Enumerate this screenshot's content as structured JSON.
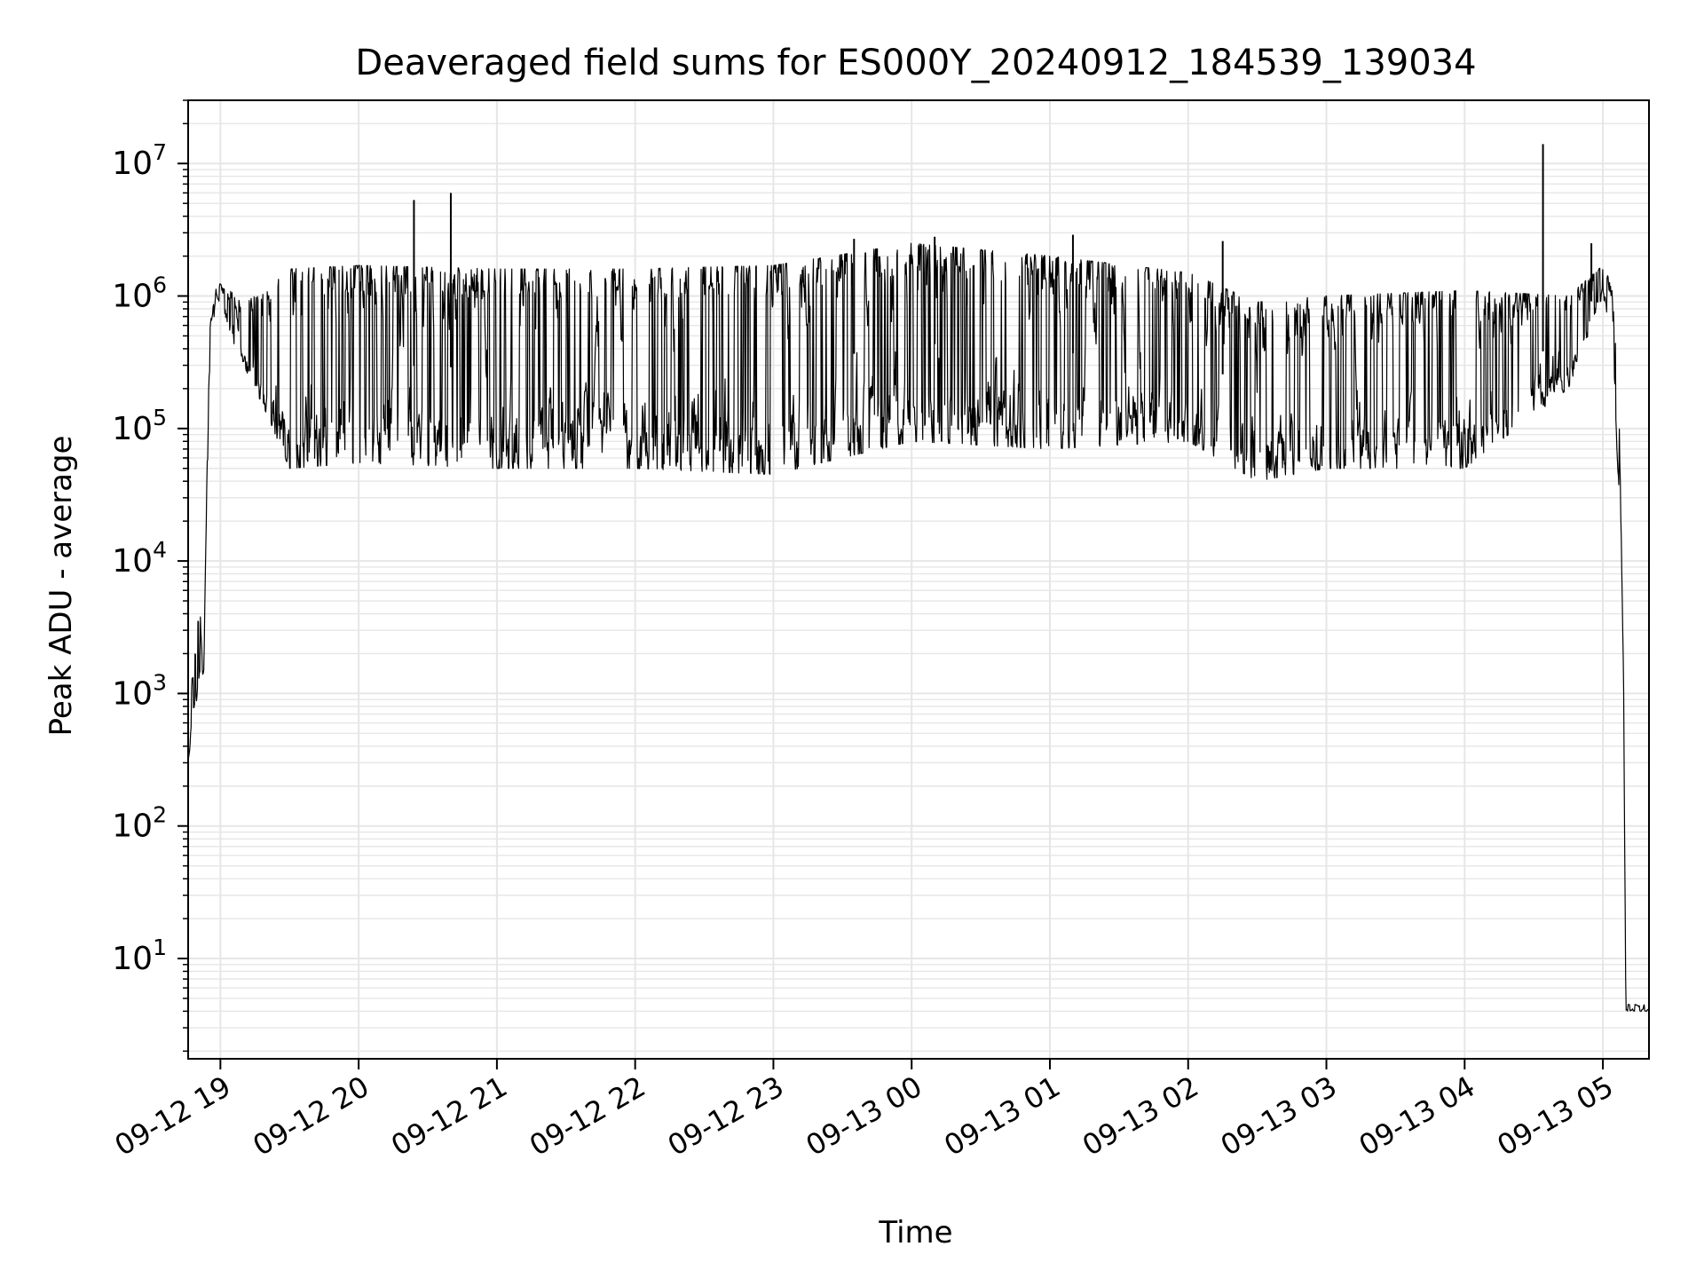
{
  "chart_data": {
    "type": "line",
    "title": "Deaveraged field sums for ES000Y_20240912_184539_139034",
    "xlabel": "Time",
    "ylabel": "Peak ADU - average",
    "x_scale": "time",
    "y_scale": "log",
    "xlim": [
      "2024-09-12 18:46:00",
      "2024-09-13 05:20:00"
    ],
    "ylim": [
      1.75,
      30000000
    ],
    "grid": true,
    "legend": "none",
    "x_ticks": [
      {
        "t": "2024-09-12 19:00",
        "label": "09-12 19"
      },
      {
        "t": "2024-09-12 20:00",
        "label": "09-12 20"
      },
      {
        "t": "2024-09-12 21:00",
        "label": "09-12 21"
      },
      {
        "t": "2024-09-12 22:00",
        "label": "09-12 22"
      },
      {
        "t": "2024-09-12 23:00",
        "label": "09-12 23"
      },
      {
        "t": "2024-09-13 00:00",
        "label": "09-13 00"
      },
      {
        "t": "2024-09-13 01:00",
        "label": "09-13 01"
      },
      {
        "t": "2024-09-13 02:00",
        "label": "09-13 02"
      },
      {
        "t": "2024-09-13 03:00",
        "label": "09-13 03"
      },
      {
        "t": "2024-09-13 04:00",
        "label": "09-13 04"
      },
      {
        "t": "2024-09-13 05:00",
        "label": "09-13 05"
      }
    ],
    "y_ticks": [
      {
        "value": 10,
        "base": "10",
        "exp": "1"
      },
      {
        "value": 100,
        "base": "10",
        "exp": "2"
      },
      {
        "value": 1000,
        "base": "10",
        "exp": "3"
      },
      {
        "value": 10000,
        "base": "10",
        "exp": "4"
      },
      {
        "value": 100000,
        "base": "10",
        "exp": "5"
      },
      {
        "value": 1000000,
        "base": "10",
        "exp": "6"
      },
      {
        "value": 10000000,
        "base": "10",
        "exp": "7"
      }
    ],
    "series": [
      {
        "color": "#000000",
        "envelope": [
          {
            "t": "2024-09-12 18:46",
            "low": 300,
            "high": 600
          },
          {
            "t": "2024-09-12 18:48",
            "low": 600,
            "high": 1500
          },
          {
            "t": "2024-09-12 18:51",
            "low": 1200,
            "high": 4700
          },
          {
            "t": "2024-09-12 18:53",
            "low": 1500,
            "high": 2500
          },
          {
            "t": "2024-09-12 18:55",
            "low": 200000,
            "high": 500000
          },
          {
            "t": "2024-09-12 18:58",
            "low": 1000000,
            "high": 1300000
          },
          {
            "t": "2024-09-12 19:04",
            "low": 500000,
            "high": 1100000
          },
          {
            "t": "2024-09-12 19:10",
            "low": 300000,
            "high": 900000
          },
          {
            "t": "2024-09-12 19:20",
            "low": 130000,
            "high": 1100000
          },
          {
            "t": "2024-09-12 19:30",
            "low": 50000,
            "high": 1600000
          },
          {
            "t": "2024-09-12 20:00",
            "low": 55000,
            "high": 1700000
          },
          {
            "t": "2024-09-12 21:00",
            "low": 50000,
            "high": 1600000
          },
          {
            "t": "2024-09-12 22:00",
            "low": 50000,
            "high": 1600000
          },
          {
            "t": "2024-09-12 23:00",
            "low": 45000,
            "high": 1700000
          },
          {
            "t": "2024-09-13 00:00",
            "low": 80000,
            "high": 2500000
          },
          {
            "t": "2024-09-13 01:00",
            "low": 70000,
            "high": 2000000
          },
          {
            "t": "2024-09-13 02:00",
            "low": 80000,
            "high": 1500000
          },
          {
            "t": "2024-09-13 02:30",
            "low": 40000,
            "high": 900000
          },
          {
            "t": "2024-09-13 03:00",
            "low": 50000,
            "high": 1000000
          },
          {
            "t": "2024-09-13 04:00",
            "low": 50000,
            "high": 1100000
          },
          {
            "t": "2024-09-13 04:45",
            "low": 200000,
            "high": 1000000
          },
          {
            "t": "2024-09-13 05:00",
            "low": 1000000,
            "high": 1700000
          },
          {
            "t": "2024-09-13 05:04",
            "low": 500000,
            "high": 1200000
          },
          {
            "t": "2024-09-13 05:07",
            "low": 30000,
            "high": 150000
          },
          {
            "t": "2024-09-13 05:09",
            "low": 800,
            "high": 1500
          },
          {
            "t": "2024-09-13 05:10",
            "low": 4,
            "high": 4.5
          },
          {
            "t": "2024-09-13 05:20",
            "low": 4,
            "high": 4.5
          }
        ],
        "spikes": [
          {
            "t": "2024-09-12 20:24",
            "value": 5300000
          },
          {
            "t": "2024-09-12 20:40",
            "value": 6000000
          },
          {
            "t": "2024-09-12 23:35",
            "value": 2700000
          },
          {
            "t": "2024-09-13 00:10",
            "value": 2800000
          },
          {
            "t": "2024-09-13 01:10",
            "value": 2900000
          },
          {
            "t": "2024-09-13 02:15",
            "value": 2600000
          },
          {
            "t": "2024-09-13 04:34",
            "value": 14000000
          },
          {
            "t": "2024-09-13 04:55",
            "value": 2500000
          }
        ]
      }
    ]
  }
}
